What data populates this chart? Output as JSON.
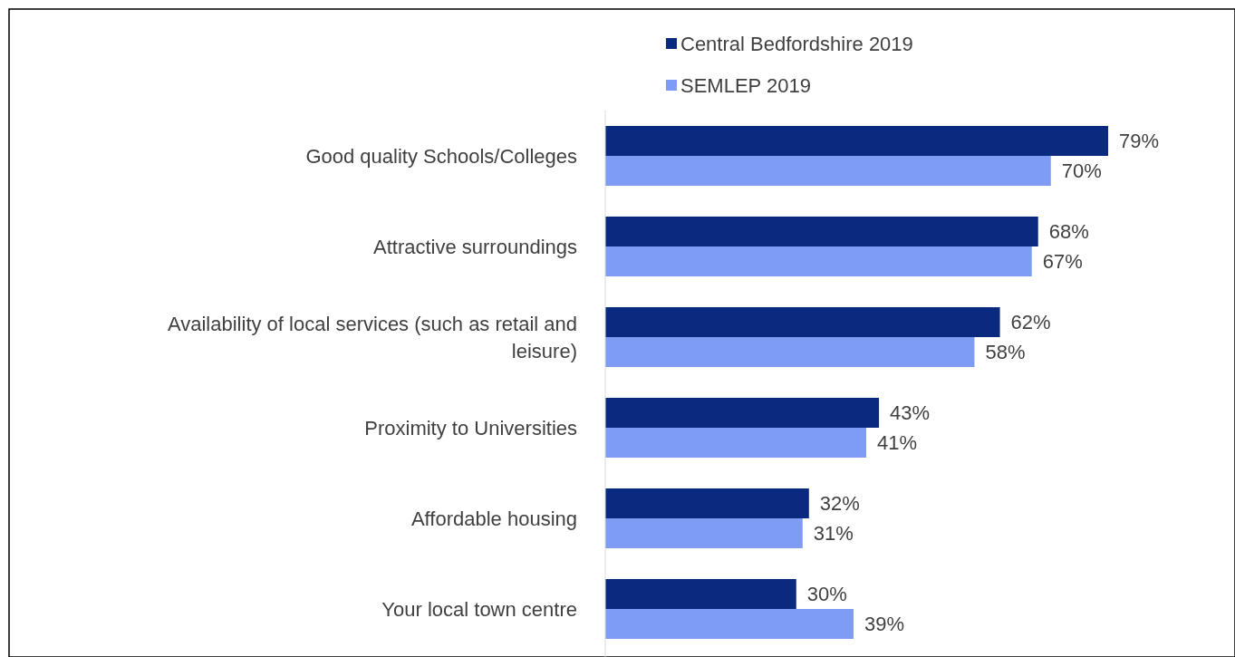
{
  "chart_data": {
    "type": "bar",
    "orientation": "horizontal",
    "categories": [
      "Good quality Schools/Colleges",
      "Attractive surroundings",
      "Availability of local services (such as retail and leisure)",
      "Proximity to Universities",
      "Affordable housing",
      "Your local town centre"
    ],
    "series": [
      {
        "name": "Central Bedfordshire 2019",
        "color": "#0a2a80",
        "values": [
          79,
          68,
          62,
          43,
          32,
          30
        ],
        "value_labels": [
          "79%",
          "68%",
          "62%",
          "43%",
          "32%",
          "30%"
        ]
      },
      {
        "name": "SEMLEP 2019",
        "color": "#7f9cf5",
        "values": [
          70,
          67,
          58,
          41,
          31,
          39
        ],
        "value_labels": [
          "70%",
          "67%",
          "58%",
          "41%",
          "31%",
          "39%"
        ]
      }
    ],
    "legend": "top",
    "tick_labels": "y"
  }
}
